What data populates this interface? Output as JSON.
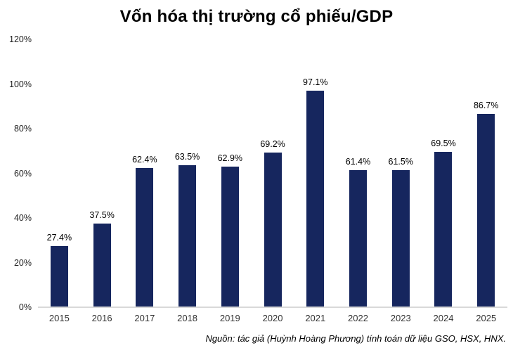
{
  "title": "Vốn hóa thị trường cổ phiếu/GDP",
  "source": "Nguồn: tác giả (Huỳnh Hoàng Phương) tính toán dữ liệu GSO, HSX, HNX.",
  "colors": {
    "bar": "#16265E",
    "axis_line": "#d9d9d9",
    "title_text": "#000000",
    "tick_text": "#1f1f1f"
  },
  "chart_data": {
    "type": "bar",
    "title": "Vốn hóa thị trường cổ phiếu/GDP",
    "categories": [
      "2015",
      "2016",
      "2017",
      "2018",
      "2019",
      "2020",
      "2021",
      "2022",
      "2023",
      "2024",
      "2025"
    ],
    "values": [
      27.4,
      37.5,
      62.4,
      63.5,
      62.9,
      69.2,
      97.1,
      61.4,
      61.5,
      69.5,
      86.7
    ],
    "value_labels": [
      "27.4%",
      "37.5%",
      "62.4%",
      "63.5%",
      "62.9%",
      "69.2%",
      "97.1%",
      "61.4%",
      "61.5%",
      "69.5%",
      "86.7%"
    ],
    "y_ticks": [
      "0%",
      "20%",
      "40%",
      "60%",
      "80%",
      "100%",
      "120%"
    ],
    "ylim": [
      0,
      120
    ],
    "xlabel": "",
    "ylabel": "",
    "grid": false,
    "legend_position": "none",
    "source_note": "Nguồn: tác giả (Huỳnh Hoàng Phương) tính toán dữ liệu GSO, HSX, HNX."
  }
}
